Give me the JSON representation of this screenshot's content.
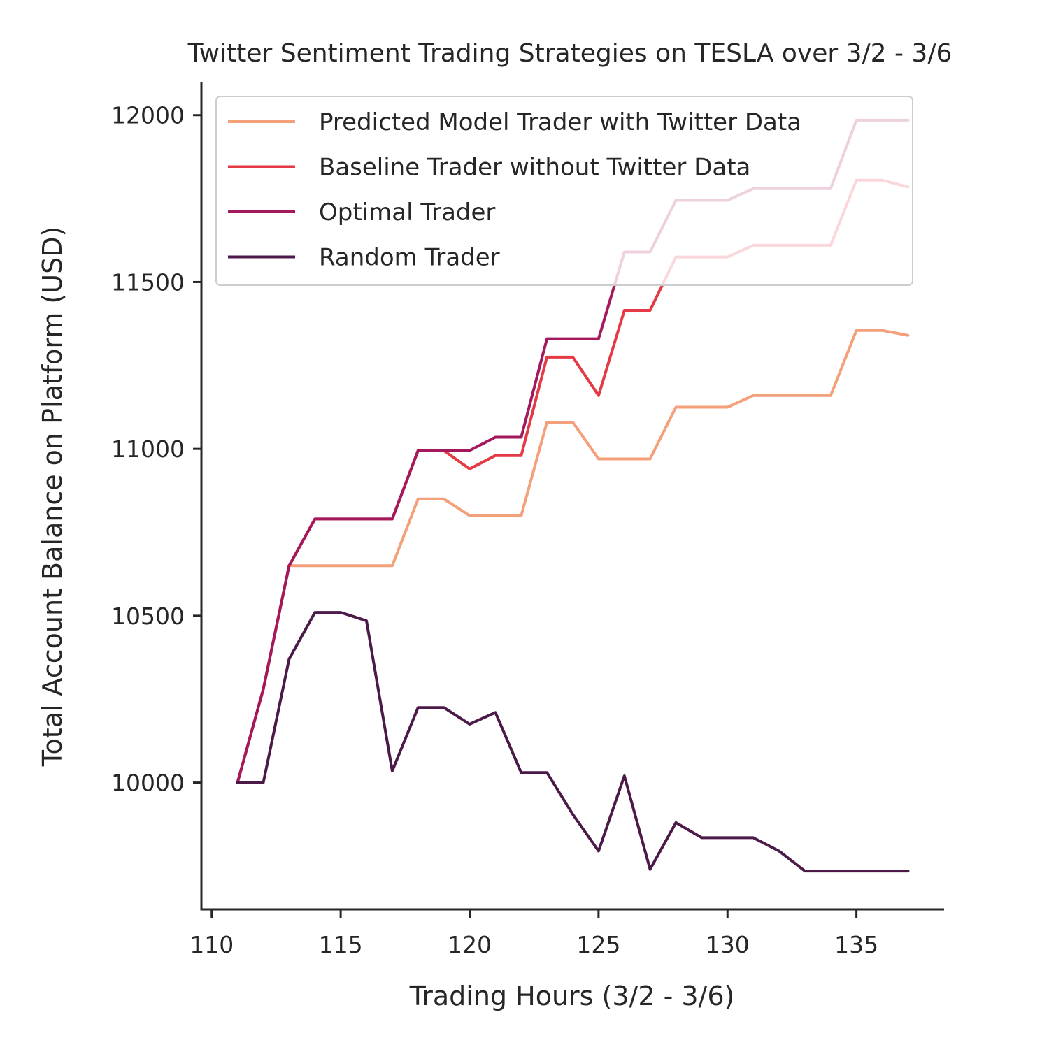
{
  "chart_data": {
    "type": "line",
    "title": "Twitter Sentiment Trading Strategies on TESLA over 3/2 - 3/6",
    "xlabel": "Trading Hours (3/2 - 3/6)",
    "ylabel": "Total Account Balance on Platform (USD)",
    "xlim": [
      109.6,
      138.4
    ],
    "ylim": [
      9620,
      12100
    ],
    "xticks": [
      110,
      115,
      120,
      125,
      130,
      135
    ],
    "yticks": [
      10000,
      10500,
      11000,
      11500,
      12000
    ],
    "grid": false,
    "legend_position": "top",
    "x": [
      111,
      112,
      113,
      114,
      115,
      116,
      117,
      118,
      119,
      120,
      121,
      122,
      123,
      124,
      125,
      126,
      127,
      128,
      129,
      130,
      131,
      132,
      133,
      134,
      135,
      136,
      137
    ],
    "series": [
      {
        "name": "Predicted Model Trader with Twitter Data",
        "color": "#f4a07a",
        "values": [
          10000,
          10280,
          10650,
          10650,
          10650,
          10650,
          10650,
          10850,
          10850,
          10800,
          10800,
          10800,
          11080,
          11080,
          10970,
          10970,
          10970,
          11125,
          11125,
          11125,
          11160,
          11160,
          11160,
          11160,
          11355,
          11355,
          11340
        ]
      },
      {
        "name": "Baseline Trader without Twitter Data",
        "color": "#e43a45",
        "values": [
          10000,
          10280,
          10650,
          10790,
          10790,
          10790,
          10790,
          10995,
          10995,
          10940,
          10980,
          10980,
          11275,
          11275,
          11160,
          11415,
          11415,
          11575,
          11575,
          11575,
          11610,
          11610,
          11610,
          11610,
          11805,
          11805,
          11785
        ]
      },
      {
        "name": "Optimal Trader",
        "color": "#a3195b",
        "values": [
          10000,
          10280,
          10650,
          10790,
          10790,
          10790,
          10790,
          10995,
          10995,
          10995,
          11035,
          11035,
          11330,
          11330,
          11330,
          11590,
          11590,
          11745,
          11745,
          11745,
          11780,
          11780,
          11780,
          11780,
          11985,
          11985,
          11985
        ]
      },
      {
        "name": "Random Trader",
        "color": "#4c1a48",
        "values": [
          10000,
          10000,
          10370,
          10510,
          10510,
          10485,
          10035,
          10225,
          10225,
          10175,
          10210,
          10030,
          10030,
          9905,
          9795,
          10020,
          9740,
          9880,
          9835,
          9835,
          9835,
          9795,
          9735,
          9735,
          9735,
          9735,
          9735
        ]
      }
    ]
  }
}
